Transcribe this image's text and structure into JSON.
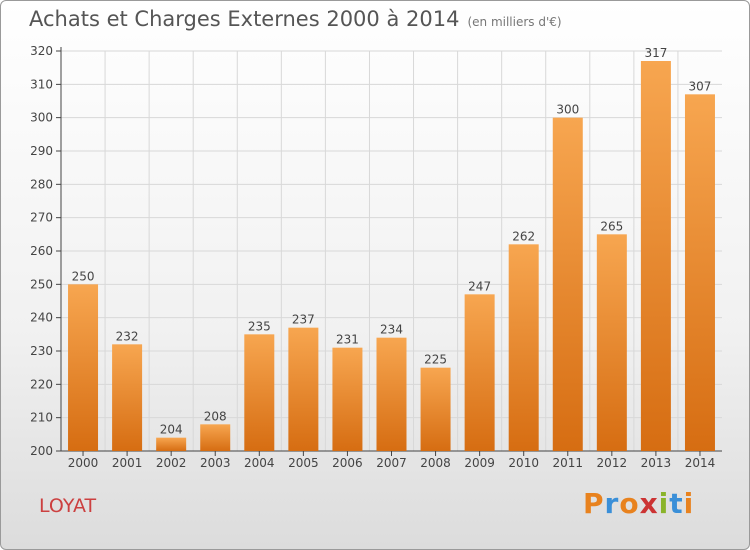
{
  "title": "Achats et Charges Externes 2000 à 2014",
  "subtitle": "(en milliers d'€)",
  "commune": "LOYAT",
  "logo_text": "Proxiti",
  "logo_colors": [
    "#e8821e",
    "#3a8fd8",
    "#e8821e",
    "#cc3333",
    "#8ab42a",
    "#3a8fd8",
    "#e8821e"
  ],
  "colors": {
    "bar_light": "#f7a650",
    "bar_dark": "#d66d12",
    "grid": "#d8d8d8",
    "axis": "#444444",
    "text": "#444444"
  },
  "chart_data": {
    "type": "bar",
    "categories": [
      "2000",
      "2001",
      "2002",
      "2003",
      "2004",
      "2005",
      "2006",
      "2007",
      "2008",
      "2009",
      "2010",
      "2011",
      "2012",
      "2013",
      "2014"
    ],
    "values": [
      250,
      232,
      204,
      208,
      235,
      237,
      231,
      234,
      225,
      247,
      262,
      300,
      265,
      317,
      307
    ],
    "ylim": [
      200,
      320
    ],
    "yticks": [
      200,
      210,
      220,
      230,
      240,
      250,
      260,
      270,
      280,
      290,
      300,
      310,
      320
    ],
    "grid": true
  }
}
